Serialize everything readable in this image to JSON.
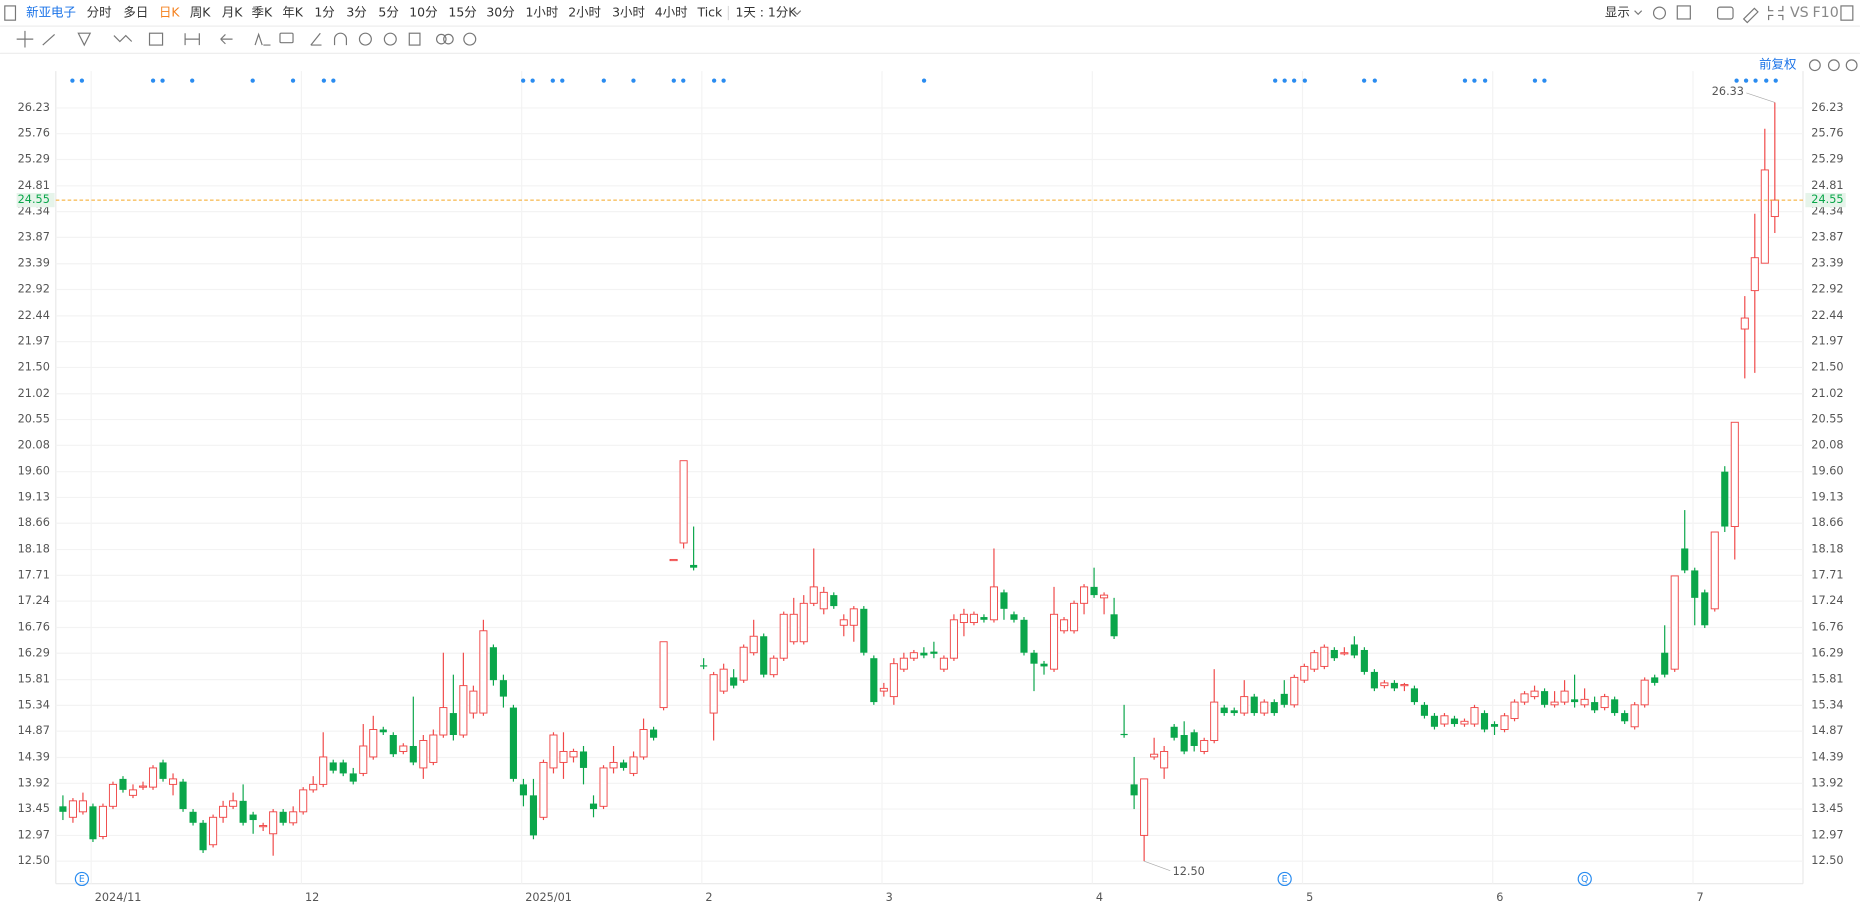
{
  "toolbar": {
    "symbol": "新亚电子",
    "periods": [
      "分时",
      "多日",
      "日K",
      "周K",
      "月K",
      "季K",
      "年K",
      "1分",
      "3分",
      "5分",
      "10分",
      "15分",
      "30分",
      "1小时",
      "2小时",
      "3小时",
      "4小时",
      "Tick"
    ],
    "selected": 2,
    "interval": "1天 : 1分K",
    "display": "显示",
    "vs": "VS",
    "f10": "F10"
  },
  "chart_data": {
    "type": "candlestick",
    "adjust": "前复权",
    "up_color": "#f04848",
    "down_color": "#0aa64a",
    "ylim": [
      12.09,
      26.9
    ],
    "yticks": [
      {
        "value": 12.5,
        "label": "12.50"
      },
      12.97,
      13.45,
      13.92,
      14.39,
      14.87,
      15.34,
      15.81,
      16.29,
      16.76,
      17.24,
      17.71,
      18.18,
      18.66,
      19.13,
      {
        "value": 19.6,
        "label": "19.60"
      },
      20.08,
      20.55,
      21.02,
      {
        "value": 21.5,
        "label": "21.50"
      },
      21.97,
      22.44,
      22.92,
      23.39,
      23.87,
      24.34,
      24.81,
      25.29,
      25.76,
      26.23
    ],
    "grid": true,
    "annotations": [
      "26.33",
      "12.50"
    ],
    "event_markers": [
      "E",
      "E",
      "Q"
    ],
    "categories": [
      null,
      null,
      null,
      "2024/11",
      null,
      null,
      null,
      null,
      null,
      null,
      null,
      null,
      null,
      null,
      null,
      null,
      null,
      null,
      null,
      null,
      null,
      null,
      null,
      null,
      "12",
      null,
      null,
      null,
      null,
      null,
      null,
      null,
      null,
      null,
      null,
      null,
      null,
      null,
      null,
      null,
      null,
      null,
      null,
      null,
      null,
      null,
      "2025/01",
      null,
      null,
      null,
      null,
      null,
      null,
      null,
      null,
      null,
      null,
      null,
      null,
      null,
      null,
      null,
      null,
      null,
      "2",
      null,
      null,
      null,
      null,
      null,
      null,
      null,
      null,
      null,
      null,
      null,
      null,
      null,
      null,
      null,
      null,
      null,
      "3",
      null,
      null,
      null,
      null,
      null,
      null,
      null,
      null,
      null,
      null,
      null,
      null,
      null,
      null,
      null,
      null,
      null,
      null,
      null,
      null,
      "4",
      null,
      null,
      null,
      null,
      null,
      null,
      null,
      null,
      null,
      null,
      null,
      null,
      null,
      null,
      null,
      null,
      null,
      null,
      null,
      null,
      "5",
      null,
      null,
      null,
      null,
      null,
      null,
      null,
      null,
      null,
      null,
      null,
      null,
      null,
      null,
      null,
      null,
      null,
      null,
      "6",
      null,
      null,
      null,
      null,
      null,
      null,
      null,
      null,
      null,
      null,
      null,
      null,
      null,
      null,
      null,
      null,
      null,
      null,
      null,
      "7",
      null,
      null,
      null,
      null,
      null,
      null,
      null,
      null
    ],
    "open": [
      13.5,
      13.3,
      13.4,
      13.5,
      12.95,
      13.5,
      14.0,
      13.7,
      13.85,
      13.85,
      14.3,
      13.9,
      13.95,
      13.4,
      13.2,
      12.8,
      13.3,
      13.5,
      13.6,
      13.35,
      13.15,
      13.0,
      13.4,
      13.2,
      13.4,
      13.8,
      13.9,
      14.3,
      14.3,
      14.1,
      14.1,
      14.4,
      14.9,
      14.8,
      14.5,
      14.6,
      14.2,
      14.3,
      14.8,
      15.2,
      14.8,
      15.2,
      15.2,
      16.4,
      15.8,
      15.3,
      13.9,
      13.7,
      13.3,
      14.2,
      14.3,
      14.4,
      14.5,
      13.55,
      13.5,
      14.2,
      14.3,
      14.1,
      14.4,
      14.9,
      15.3,
      18.0,
      18.3,
      17.9,
      16.07,
      15.2,
      15.6,
      15.85,
      15.8,
      16.3,
      16.6,
      15.9,
      16.2,
      16.5,
      16.5,
      17.2,
      17.1,
      17.35,
      16.8,
      16.8,
      17.1,
      16.2,
      15.6,
      15.5,
      16.0,
      16.2,
      16.3,
      16.32,
      16.0,
      16.2,
      16.85,
      16.85,
      16.95,
      16.9,
      17.4,
      17.0,
      16.9,
      16.3,
      16.1,
      16.0,
      16.7,
      16.7,
      17.2,
      17.5,
      17.3,
      17.0,
      14.82,
      13.9,
      12.97,
      14.4,
      14.2,
      14.95,
      14.8,
      14.85,
      14.5,
      14.7,
      15.3,
      15.25,
      15.2,
      15.5,
      15.2,
      15.4,
      15.55,
      15.35,
      15.8,
      16.0,
      16.05,
      16.35,
      16.3,
      16.45,
      16.35,
      15.95,
      15.7,
      15.75,
      15.7,
      15.65,
      15.35,
      15.15,
      15.0,
      15.1,
      15.0,
      15.0,
      15.2,
      15.0,
      14.9,
      15.1,
      15.4,
      15.5,
      15.6,
      15.35,
      15.4,
      15.45,
      15.35,
      15.4,
      15.3,
      15.45,
      15.2,
      14.95,
      15.35,
      15.85,
      16.3,
      16.0,
      18.2,
      17.8,
      17.4,
      17.1,
      19.6,
      18.6,
      22.2,
      22.9,
      23.4,
      24.25
    ],
    "close": [
      13.4,
      13.6,
      13.6,
      12.9,
      13.5,
      13.9,
      13.8,
      13.8,
      13.87,
      14.2,
      14.0,
      14.0,
      13.45,
      13.2,
      12.7,
      13.3,
      13.5,
      13.6,
      13.2,
      13.25,
      13.15,
      13.4,
      13.2,
      13.4,
      13.8,
      13.9,
      14.4,
      14.15,
      14.1,
      13.95,
      14.6,
      14.9,
      14.85,
      14.45,
      14.6,
      14.3,
      14.7,
      14.8,
      15.3,
      14.8,
      15.7,
      15.6,
      16.7,
      15.8,
      15.5,
      14.0,
      13.7,
      12.97,
      14.3,
      14.8,
      14.5,
      14.5,
      14.2,
      13.45,
      14.2,
      14.3,
      14.2,
      14.4,
      14.9,
      14.75,
      16.5,
      18.0,
      19.8,
      17.85,
      16.05,
      15.9,
      16.0,
      15.7,
      16.4,
      16.6,
      15.9,
      16.2,
      17.0,
      17.0,
      17.2,
      17.5,
      17.4,
      17.15,
      16.9,
      17.1,
      16.3,
      15.4,
      15.65,
      16.1,
      16.2,
      16.3,
      16.25,
      16.28,
      16.2,
      16.9,
      17.0,
      17.0,
      16.9,
      17.5,
      17.1,
      16.9,
      16.3,
      16.1,
      16.05,
      17.0,
      16.9,
      17.2,
      17.5,
      17.35,
      17.35,
      16.6,
      14.8,
      13.7,
      14.0,
      14.45,
      14.5,
      14.75,
      14.5,
      14.6,
      14.7,
      15.4,
      15.2,
      15.2,
      15.5,
      15.2,
      15.4,
      15.2,
      15.35,
      15.85,
      16.05,
      16.3,
      16.4,
      16.2,
      16.3,
      16.25,
      15.95,
      15.65,
      15.75,
      15.65,
      15.72,
      15.4,
      15.15,
      14.95,
      15.15,
      15.0,
      15.05,
      15.3,
      14.9,
      14.95,
      15.15,
      15.4,
      15.55,
      15.6,
      15.35,
      15.4,
      15.6,
      15.4,
      15.45,
      15.25,
      15.5,
      15.2,
      15.05,
      15.35,
      15.8,
      15.75,
      15.9,
      17.7,
      17.8,
      17.3,
      16.8,
      18.5,
      18.6,
      20.5,
      22.4,
      23.5,
      25.1,
      24.55
    ],
    "high": [
      13.7,
      13.65,
      13.75,
      13.55,
      13.55,
      13.95,
      14.05,
      13.9,
      13.95,
      14.25,
      14.35,
      14.1,
      14.0,
      13.45,
      13.25,
      13.35,
      13.6,
      13.75,
      13.9,
      13.4,
      13.2,
      13.45,
      13.45,
      13.5,
      13.85,
      14.05,
      14.85,
      14.35,
      14.35,
      14.2,
      15.0,
      15.15,
      14.95,
      14.85,
      14.65,
      15.5,
      14.8,
      14.9,
      16.3,
      15.9,
      16.3,
      15.7,
      16.9,
      16.45,
      15.9,
      15.35,
      14.0,
      14.0,
      14.35,
      14.85,
      14.85,
      14.55,
      14.6,
      13.7,
      14.25,
      14.6,
      14.35,
      14.5,
      15.1,
      14.95,
      16.5,
      18.0,
      19.8,
      18.6,
      16.2,
      15.95,
      16.1,
      16.0,
      16.45,
      16.9,
      16.65,
      16.25,
      17.05,
      17.3,
      17.35,
      18.2,
      17.5,
      17.4,
      17.0,
      17.15,
      17.15,
      16.25,
      15.75,
      16.2,
      16.3,
      16.35,
      16.4,
      16.5,
      16.25,
      17.0,
      17.1,
      17.05,
      17.0,
      18.2,
      17.45,
      17.05,
      16.95,
      16.35,
      16.15,
      17.5,
      16.95,
      17.25,
      17.55,
      17.85,
      17.4,
      17.3,
      15.35,
      14.4,
      14.0,
      14.75,
      14.6,
      15.0,
      15.05,
      14.9,
      14.75,
      16.0,
      15.35,
      15.3,
      15.8,
      15.55,
      15.45,
      15.45,
      15.8,
      15.9,
      16.1,
      16.35,
      16.45,
      16.4,
      16.4,
      16.6,
      16.4,
      16.0,
      15.8,
      15.8,
      15.75,
      15.7,
      15.4,
      15.2,
      15.2,
      15.15,
      15.1,
      15.35,
      15.25,
      15.05,
      15.2,
      15.45,
      15.6,
      15.7,
      15.65,
      15.6,
      15.8,
      15.9,
      15.65,
      15.5,
      15.55,
      15.5,
      15.25,
      15.4,
      15.85,
      15.9,
      16.8,
      17.7,
      18.9,
      17.85,
      17.45,
      18.5,
      19.7,
      20.5,
      22.8,
      24.3,
      25.85,
      26.33
    ],
    "low": [
      13.25,
      13.2,
      13.35,
      12.85,
      12.9,
      13.45,
      13.75,
      13.65,
      13.8,
      13.8,
      13.95,
      13.7,
      13.4,
      13.15,
      12.65,
      12.75,
      13.2,
      13.45,
      13.15,
      13.0,
      13.05,
      12.6,
      13.15,
      13.15,
      13.35,
      13.75,
      13.85,
      14.1,
      14.05,
      13.9,
      14.05,
      14.35,
      14.8,
      14.4,
      14.45,
      14.25,
      14.0,
      14.25,
      14.75,
      14.7,
      14.75,
      15.1,
      15.15,
      15.7,
      15.3,
      13.95,
      13.5,
      12.9,
      13.25,
      14.1,
      14.0,
      14.3,
      13.9,
      13.3,
      13.45,
      14.1,
      14.15,
      14.05,
      14.35,
      14.7,
      15.25,
      18.0,
      18.2,
      17.8,
      16.0,
      14.7,
      15.55,
      15.65,
      15.75,
      16.25,
      15.85,
      15.85,
      16.15,
      16.45,
      16.45,
      17.15,
      17.0,
      17.1,
      16.6,
      16.5,
      16.25,
      15.35,
      15.5,
      15.35,
      15.95,
      16.15,
      16.2,
      16.2,
      15.95,
      16.15,
      16.6,
      16.8,
      16.85,
      16.85,
      16.9,
      16.85,
      16.25,
      15.6,
      15.9,
      15.95,
      16.65,
      16.65,
      17.0,
      17.3,
      17.0,
      16.55,
      14.75,
      13.45,
      12.5,
      14.35,
      14.0,
      14.7,
      14.45,
      14.5,
      14.45,
      14.65,
      15.15,
      15.15,
      15.15,
      15.15,
      15.15,
      15.15,
      15.3,
      15.3,
      15.75,
      15.95,
      16.0,
      16.15,
      16.25,
      16.2,
      15.9,
      15.6,
      15.65,
      15.6,
      15.6,
      15.35,
      15.1,
      14.9,
      14.95,
      14.95,
      14.95,
      14.95,
      14.85,
      14.8,
      14.85,
      15.05,
      15.35,
      15.45,
      15.3,
      15.3,
      15.35,
      15.3,
      15.3,
      15.2,
      15.25,
      15.15,
      15.0,
      14.9,
      15.3,
      15.7,
      15.85,
      15.95,
      17.75,
      16.8,
      16.75,
      17.05,
      18.5,
      18.0,
      21.3,
      21.4,
      23.4,
      23.95
    ]
  }
}
